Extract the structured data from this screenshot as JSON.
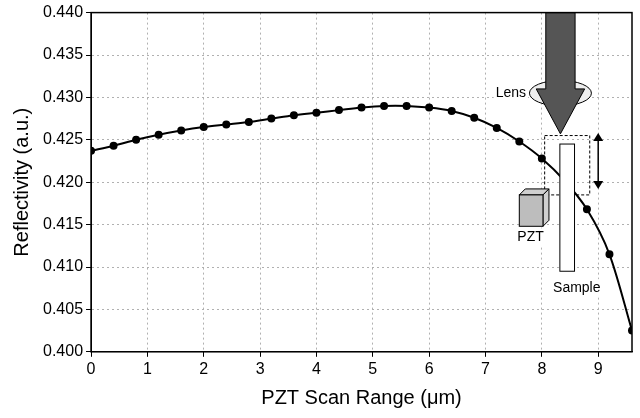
{
  "chart_data": {
    "type": "line",
    "x_label": "PZT Scan Range (μm)",
    "y_label": "Reflectivity (a.u.)",
    "series": [
      {
        "name": "Reflectivity",
        "color": "#000000",
        "marker": "circle",
        "line_style": "solid",
        "x": [
          0,
          0.4,
          0.8,
          1.2,
          1.6,
          2.0,
          2.4,
          2.8,
          3.2,
          3.6,
          4.0,
          4.4,
          4.8,
          5.2,
          5.6,
          6.0,
          6.4,
          6.8,
          7.2,
          7.6,
          8.0,
          8.4,
          8.8,
          9.2,
          9.6
        ],
        "values": [
          0.4237,
          0.4243,
          0.425,
          0.4256,
          0.4261,
          0.4265,
          0.4268,
          0.4271,
          0.4275,
          0.4279,
          0.4282,
          0.4285,
          0.4288,
          0.429,
          0.429,
          0.4288,
          0.4284,
          0.4276,
          0.4264,
          0.4248,
          0.4228,
          0.4202,
          0.4168,
          0.4115,
          0.4025
        ]
      }
    ],
    "xlim": [
      0,
      9.6
    ],
    "xticks": [
      0,
      1,
      2,
      3,
      4,
      5,
      6,
      7,
      8,
      9
    ],
    "ylim": [
      0.4,
      0.44
    ],
    "yticks": [
      {
        "value": 0.4,
        "label": "0.400"
      },
      {
        "value": 0.405,
        "label": "0.405"
      },
      {
        "value": 0.41,
        "label": "0.410"
      },
      {
        "value": 0.415,
        "label": "0.415"
      },
      {
        "value": 0.42,
        "label": "0.420"
      },
      {
        "value": 0.425,
        "label": "0.425"
      },
      {
        "value": 0.43,
        "label": "0.430"
      },
      {
        "value": 0.435,
        "label": "0.435"
      },
      {
        "value": 0.44,
        "label": "0.440"
      }
    ],
    "grid": true,
    "annotations": [
      "Lens",
      "PZT",
      "Sample"
    ]
  }
}
